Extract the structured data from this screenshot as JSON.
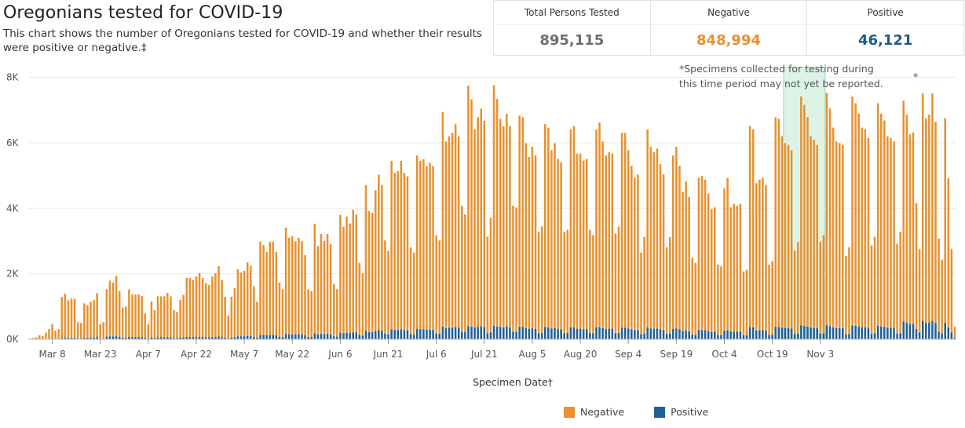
{
  "header": {
    "title": "Oregonians tested for COVID-19",
    "subtitle": "This chart shows the number of Oregonians tested for COVID-19 and whether their results were positive or negative.‡"
  },
  "kpis": [
    {
      "label": "Total Persons Tested",
      "value": "895,115",
      "color": "#6b6f73"
    },
    {
      "label": "Negative",
      "value": "848,994",
      "color": "#e8912e"
    },
    {
      "label": "Positive",
      "value": "46,121",
      "color": "#1a5c8e"
    }
  ],
  "note": {
    "line1": "*Specimens collected for testing during",
    "line2": "this time period may not yet be reported.",
    "marker": "*"
  },
  "legend": [
    {
      "label": "Negative",
      "color": "#e8912e"
    },
    {
      "label": "Positive",
      "color": "#1f5f98"
    }
  ],
  "chart_data": {
    "type": "bar",
    "stacked": true,
    "xlabel": "Specimen Date†",
    "ylabel": "",
    "ylim": [
      0,
      8300
    ],
    "y_ticks": [
      0,
      2000,
      4000,
      6000,
      8000
    ],
    "y_tick_labels": [
      "0K",
      "2K",
      "4K",
      "6K",
      "8K"
    ],
    "start_date": "2020-03-01",
    "x_tick_dates": [
      "2020-03-08",
      "2020-03-23",
      "2020-04-07",
      "2020-04-22",
      "2020-05-07",
      "2020-05-22",
      "2020-06-06",
      "2020-06-21",
      "2020-07-06",
      "2020-07-21",
      "2020-08-05",
      "2020-08-20",
      "2020-09-04",
      "2020-09-19",
      "2020-10-04",
      "2020-10-19",
      "2020-11-03"
    ],
    "x_tick_labels": [
      "Mar 8",
      "Mar 23",
      "Apr 7",
      "Apr 22",
      "May 7",
      "May 22",
      "Jun 6",
      "Jun 21",
      "Jul 6",
      "Jul 21",
      "Aug 5",
      "Aug 20",
      "Sep 4",
      "Sep 19",
      "Oct 4",
      "Oct 19",
      "Nov 3"
    ],
    "shaded_region": {
      "start": "2020-10-23",
      "end": "2020-11-04"
    },
    "grid": "horizontal",
    "legend_position": "bottom",
    "colors": {
      "negative": "#e8912e",
      "positive": "#1f5f98",
      "shade": "#dcf3e6",
      "shade_border": "#9fd8b5"
    },
    "series": [
      {
        "name": "Negative",
        "values": [
          20,
          40,
          60,
          120,
          100,
          200,
          300,
          450,
          250,
          300,
          1250,
          1350,
          1150,
          1200,
          1200,
          500,
          480,
          1050,
          1000,
          1100,
          1150,
          1350,
          450,
          500,
          1450,
          1700,
          1650,
          1850,
          1400,
          920,
          950,
          1450,
          1300,
          1300,
          1300,
          1250,
          750,
          450,
          1100,
          850,
          1250,
          1250,
          1250,
          1350,
          1250,
          850,
          800,
          1150,
          1300,
          1800,
          1800,
          1750,
          1850,
          1950,
          1800,
          1650,
          1600,
          1850,
          1950,
          2150,
          1750,
          1250,
          700,
          1250,
          1500,
          2050,
          1950,
          2000,
          2250,
          2150,
          1550,
          1100,
          2850,
          2750,
          2550,
          2850,
          2850,
          2550,
          1650,
          1450,
          3250,
          2950,
          3000,
          2850,
          2950,
          2850,
          2450,
          1450,
          1400,
          3350,
          2700,
          3050,
          2850,
          3050,
          2750,
          1600,
          1450,
          3600,
          3250,
          3550,
          3350,
          3750,
          3600,
          2200,
          1900,
          4450,
          3700,
          3650,
          4300,
          4750,
          4450,
          2850,
          2550,
          5150,
          4800,
          4850,
          5150,
          4800,
          4700,
          2650,
          2500,
          5300,
          5150,
          5200,
          5000,
          5100,
          5000,
          3000,
          2850,
          6550,
          5700,
          5850,
          5950,
          6200,
          5850,
          3850,
          3600,
          7350,
          6950,
          6050,
          6400,
          6650,
          6300,
          2950,
          3500,
          7350,
          6950,
          6350,
          6150,
          6500,
          6150,
          3850,
          3800,
          6450,
          6400,
          5650,
          5250,
          5550,
          5300,
          3100,
          3250,
          6200,
          6100,
          5450,
          5650,
          5200,
          5100,
          3100,
          3150,
          6050,
          6150,
          5350,
          5350,
          5150,
          5200,
          3150,
          3000,
          6050,
          6250,
          5700,
          5300,
          5400,
          5350,
          3050,
          3250,
          5950,
          5950,
          5450,
          5000,
          4650,
          4750,
          2500,
          2950,
          6050,
          5550,
          5400,
          5500,
          5050,
          4750,
          2650,
          2950,
          5300,
          5550,
          5000,
          4250,
          4550,
          4100,
          2350,
          2200,
          4650,
          4700,
          4600,
          4200,
          3750,
          3800,
          2150,
          2100,
          4350,
          4650,
          3800,
          3900,
          3850,
          3900,
          1950,
          2000,
          6150,
          6050,
          4500,
          4600,
          4650,
          4450,
          2150,
          2250,
          6400,
          6350,
          5850,
          5650,
          5600,
          5450,
          2550,
          2800,
          7000,
          6750,
          6400,
          5850,
          5750,
          5600,
          2800,
          3000,
          7100,
          6650,
          6100,
          5700,
          5650,
          5600,
          2400,
          2650,
          7000,
          6800,
          6500,
          6100,
          6050,
          5800,
          2700,
          2950,
          6800,
          6500,
          6300,
          5850,
          5800,
          5700,
          2750,
          3100,
          6750,
          6350,
          5800,
          5850,
          3850,
          2550,
          6950,
          6250,
          6350,
          6950,
          6150,
          2850,
          2250,
          6250,
          4550,
          2550,
          350
        ]
      },
      {
        "name": "Positive",
        "values": [
          0,
          0,
          0,
          2,
          2,
          5,
          10,
          15,
          8,
          10,
          40,
          45,
          40,
          42,
          42,
          20,
          18,
          45,
          40,
          45,
          48,
          60,
          18,
          20,
          80,
          90,
          85,
          90,
          75,
          45,
          50,
          75,
          70,
          70,
          70,
          65,
          35,
          20,
          55,
          40,
          60,
          60,
          60,
          65,
          60,
          40,
          35,
          55,
          60,
          70,
          70,
          65,
          70,
          75,
          70,
          60,
          55,
          65,
          70,
          80,
          60,
          45,
          25,
          50,
          60,
          90,
          90,
          90,
          100,
          95,
          70,
          50,
          130,
          130,
          120,
          130,
          130,
          120,
          80,
          70,
          160,
          150,
          150,
          145,
          150,
          145,
          120,
          70,
          70,
          180,
          150,
          165,
          155,
          165,
          150,
          90,
          80,
          200,
          185,
          200,
          190,
          210,
          205,
          130,
          110,
          260,
          220,
          215,
          250,
          280,
          260,
          170,
          150,
          300,
          280,
          285,
          300,
          280,
          275,
          155,
          145,
          310,
          300,
          300,
          290,
          295,
          290,
          175,
          165,
          390,
          340,
          350,
          355,
          370,
          350,
          230,
          215,
          400,
          380,
          360,
          380,
          395,
          375,
          180,
          210,
          410,
          390,
          380,
          360,
          385,
          365,
          230,
          225,
          380,
          380,
          340,
          315,
          330,
          315,
          185,
          195,
          370,
          360,
          325,
          335,
          310,
          305,
          185,
          190,
          360,
          365,
          320,
          320,
          305,
          310,
          190,
          180,
          360,
          370,
          340,
          315,
          320,
          320,
          180,
          195,
          355,
          355,
          325,
          300,
          280,
          285,
          150,
          175,
          360,
          330,
          320,
          325,
          300,
          285,
          160,
          175,
          315,
          330,
          300,
          255,
          270,
          245,
          140,
          130,
          280,
          285,
          275,
          250,
          225,
          225,
          130,
          125,
          260,
          280,
          230,
          235,
          230,
          235,
          120,
          120,
          370,
          360,
          270,
          275,
          280,
          265,
          130,
          135,
          380,
          380,
          350,
          340,
          335,
          325,
          155,
          170,
          420,
          405,
          385,
          350,
          345,
          335,
          170,
          180,
          425,
          400,
          365,
          340,
          340,
          335,
          145,
          160,
          420,
          410,
          390,
          365,
          365,
          350,
          165,
          180,
          410,
          390,
          380,
          350,
          350,
          345,
          165,
          185,
          540,
          510,
          465,
          470,
          310,
          205,
          560,
          500,
          510,
          560,
          495,
          230,
          180,
          500,
          365,
          205,
          30
        ]
      }
    ]
  }
}
